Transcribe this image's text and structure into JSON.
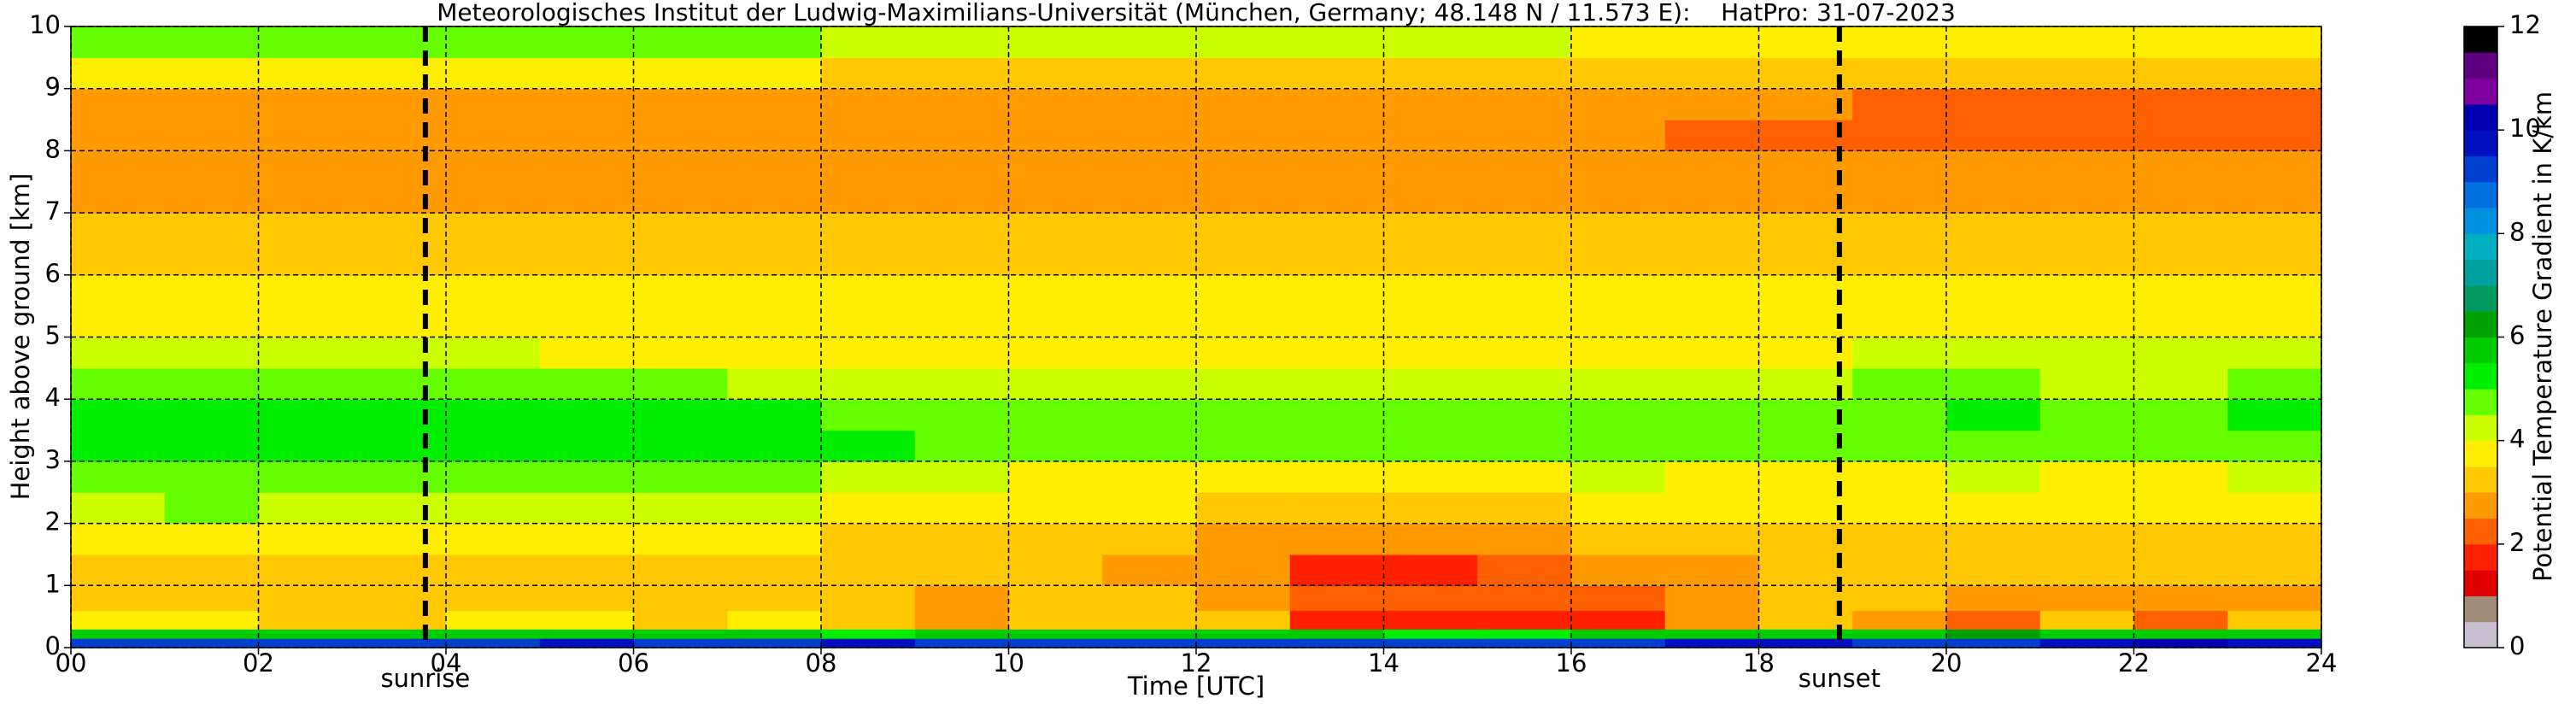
{
  "chart_data": {
    "type": "heatmap",
    "title": "Meteorologisches Institut der Ludwig-Maximilians-Universität (München, Germany; 48.148 N / 11.573 E):    HatPro: 31-07-2023",
    "xlabel": "Time [UTC]",
    "ylabel": "Height above ground [km]",
    "xlim": [
      0,
      24
    ],
    "ylim": [
      0,
      10
    ],
    "xticks": [
      {
        "value": 0,
        "label": "00"
      },
      {
        "value": 2,
        "label": "02"
      },
      {
        "value": 4,
        "label": "04"
      },
      {
        "value": 6,
        "label": "06"
      },
      {
        "value": 8,
        "label": "08"
      },
      10,
      12,
      14,
      16,
      18,
      20,
      22,
      24
    ],
    "yticks": [
      0,
      1,
      2,
      3,
      4,
      5,
      6,
      7,
      8,
      9,
      10
    ],
    "grid": true,
    "events": [
      {
        "label": "sunrise",
        "x": 3.78
      },
      {
        "label": "sunset",
        "x": 18.86
      }
    ],
    "x_bins": [
      0,
      1,
      2,
      3,
      4,
      5,
      6,
      7,
      8,
      9,
      10,
      11,
      12,
      13,
      14,
      15,
      16,
      17,
      18,
      19,
      20,
      21,
      22,
      23,
      24
    ],
    "y_bins": [
      0,
      0.15,
      0.3,
      0.6,
      1,
      1.5,
      2,
      2.5,
      3,
      3.5,
      4,
      4.5,
      5,
      6,
      7,
      8,
      8.5,
      9,
      9.5,
      10
    ],
    "z": [
      [
        9,
        9,
        9,
        9,
        9,
        9.5,
        9,
        9,
        9.5,
        9,
        9,
        9,
        9,
        9,
        9,
        9,
        9,
        9.5,
        9.5,
        9,
        9,
        9.5,
        10,
        9.5
      ],
      [
        5.5,
        5.5,
        5.5,
        5.5,
        5.5,
        5.5,
        5.5,
        5.5,
        5,
        5.5,
        5.5,
        5.5,
        5.5,
        5.5,
        5,
        5,
        5.5,
        5.5,
        5.5,
        5.5,
        6,
        5.5,
        5.5,
        5.5
      ],
      [
        3.5,
        3.5,
        3.4,
        3.4,
        3.5,
        3.5,
        3.4,
        3.5,
        3,
        2.5,
        3.2,
        3.3,
        3,
        1.6,
        1.8,
        1.6,
        1.5,
        2.5,
        3.2,
        2.5,
        2.4,
        3,
        2.2,
        3
      ],
      [
        3.3,
        3.2,
        3.2,
        3.3,
        3.3,
        3.4,
        3.4,
        3.2,
        3,
        2.8,
        3.1,
        3.1,
        2.7,
        2,
        2.1,
        2.2,
        2.2,
        2.8,
        3.1,
        3,
        2.8,
        2.9,
        2.6,
        2.9
      ],
      [
        3.4,
        3.4,
        3.4,
        3.4,
        3.4,
        3.4,
        3.4,
        3.3,
        3.2,
        3.1,
        3,
        2.9,
        2.5,
        1.8,
        1.7,
        2.2,
        2.5,
        2.9,
        3,
        3.1,
        3,
        3,
        3,
        3.1
      ],
      [
        3.7,
        3.7,
        3.6,
        3.6,
        3.6,
        3.6,
        3.6,
        3.5,
        3.4,
        3.3,
        3.2,
        3.1,
        2.9,
        2.7,
        2.7,
        2.8,
        3,
        3.1,
        3.2,
        3.3,
        3.3,
        3.2,
        3.2,
        3.3
      ],
      [
        4.4,
        4.5,
        4.4,
        4.3,
        4.3,
        4.2,
        4.2,
        4,
        3.8,
        3.7,
        3.6,
        3.5,
        3.4,
        3.3,
        3.3,
        3.4,
        3.6,
        3.6,
        3.6,
        3.7,
        3.7,
        3.6,
        3.6,
        3.7
      ],
      [
        4.8,
        4.9,
        4.8,
        4.8,
        4.7,
        4.7,
        4.6,
        4.5,
        4.3,
        4,
        3.9,
        3.8,
        3.8,
        3.7,
        3.7,
        3.8,
        4,
        3.9,
        3.9,
        3.9,
        4,
        3.9,
        3.9,
        4
      ],
      [
        5.2,
        5.2,
        5.2,
        5.1,
        5.1,
        5.1,
        5.1,
        5.1,
        5,
        4.9,
        4.8,
        4.8,
        4.7,
        4.6,
        4.6,
        4.7,
        4.9,
        4.7,
        4.6,
        4.7,
        4.8,
        4.7,
        4.8,
        4.8
      ],
      [
        5.1,
        5.1,
        5.1,
        5,
        5,
        5,
        5,
        5,
        4.9,
        4.8,
        4.8,
        4.7,
        4.7,
        4.7,
        4.7,
        4.8,
        4.9,
        4.8,
        4.8,
        4.9,
        5,
        4.9,
        4.9,
        5
      ],
      [
        4.6,
        4.6,
        4.5,
        4.5,
        4.5,
        4.5,
        4.5,
        4.4,
        4.3,
        4.3,
        4.2,
        4.2,
        4.3,
        4.3,
        4.3,
        4.3,
        4.4,
        4.4,
        4.4,
        4.5,
        4.5,
        4.4,
        4.4,
        4.5
      ],
      [
        4,
        4,
        4,
        4,
        4,
        3.9,
        3.9,
        3.9,
        3.8,
        3.8,
        3.8,
        3.8,
        3.9,
        3.9,
        3.9,
        3.9,
        3.9,
        3.9,
        3.9,
        4,
        4,
        4,
        4,
        4
      ],
      [
        3.6,
        3.6,
        3.6,
        3.6,
        3.6,
        3.6,
        3.6,
        3.6,
        3.5,
        3.5,
        3.5,
        3.5,
        3.6,
        3.6,
        3.6,
        3.6,
        3.6,
        3.6,
        3.6,
        3.6,
        3.6,
        3.6,
        3.6,
        3.6
      ],
      [
        3.1,
        3.1,
        3.1,
        3.1,
        3.1,
        3.1,
        3.1,
        3.1,
        3,
        3,
        3,
        3,
        3.1,
        3.1,
        3.1,
        3.1,
        3.1,
        3.1,
        3.1,
        3.2,
        3.2,
        3.2,
        3.2,
        3.2
      ],
      [
        2.8,
        2.8,
        2.8,
        2.8,
        2.8,
        2.8,
        2.8,
        2.8,
        2.7,
        2.7,
        2.7,
        2.7,
        2.8,
        2.8,
        2.8,
        2.8,
        2.8,
        2.8,
        2.8,
        2.8,
        2.8,
        2.8,
        2.8,
        2.8
      ],
      [
        2.7,
        2.7,
        2.7,
        2.7,
        2.7,
        2.7,
        2.6,
        2.6,
        2.6,
        2.6,
        2.6,
        2.6,
        2.7,
        2.7,
        2.7,
        2.6,
        2.5,
        2.4,
        2.4,
        2.3,
        2.3,
        2.3,
        2.3,
        2.3
      ],
      [
        2.8,
        2.8,
        2.8,
        2.8,
        2.8,
        2.8,
        2.8,
        2.8,
        2.8,
        2.8,
        2.8,
        2.8,
        2.8,
        2.8,
        2.8,
        2.7,
        2.6,
        2.5,
        2.5,
        2.4,
        2.4,
        2.4,
        2.4,
        2.4
      ],
      [
        3.6,
        3.6,
        3.6,
        3.6,
        3.6,
        3.6,
        3.5,
        3.5,
        3.4,
        3.4,
        3.4,
        3.4,
        3.4,
        3.4,
        3.3,
        3.3,
        3.2,
        3.1,
        3.1,
        3,
        3,
        3,
        3,
        3.1
      ],
      [
        4.8,
        4.8,
        4.8,
        4.8,
        4.8,
        4.8,
        4.7,
        4.5,
        4.2,
        4.1,
        4,
        4,
        4,
        4,
        4,
        4,
        3.9,
        3.8,
        3.8,
        3.8,
        3.8,
        3.8,
        3.8,
        3.8
      ]
    ],
    "colorbar": {
      "label": "Potential Temperature Gradient in K/km",
      "lim": [
        0,
        12
      ],
      "ticks": [
        0,
        2,
        4,
        6,
        8,
        10,
        12
      ],
      "colors": [
        "#c8c0d0",
        "#a08c78",
        "#e00000",
        "#ff2000",
        "#ff6000",
        "#ff9a00",
        "#ffc800",
        "#ffee00",
        "#ccff00",
        "#66ff00",
        "#00ee00",
        "#00cc00",
        "#00a000",
        "#009a60",
        "#00a0a0",
        "#00b0c0",
        "#0090e0",
        "#0070e0",
        "#0040d0",
        "#0010c0",
        "#0000b0",
        "#8000a0",
        "#600080",
        "#000000"
      ]
    }
  }
}
